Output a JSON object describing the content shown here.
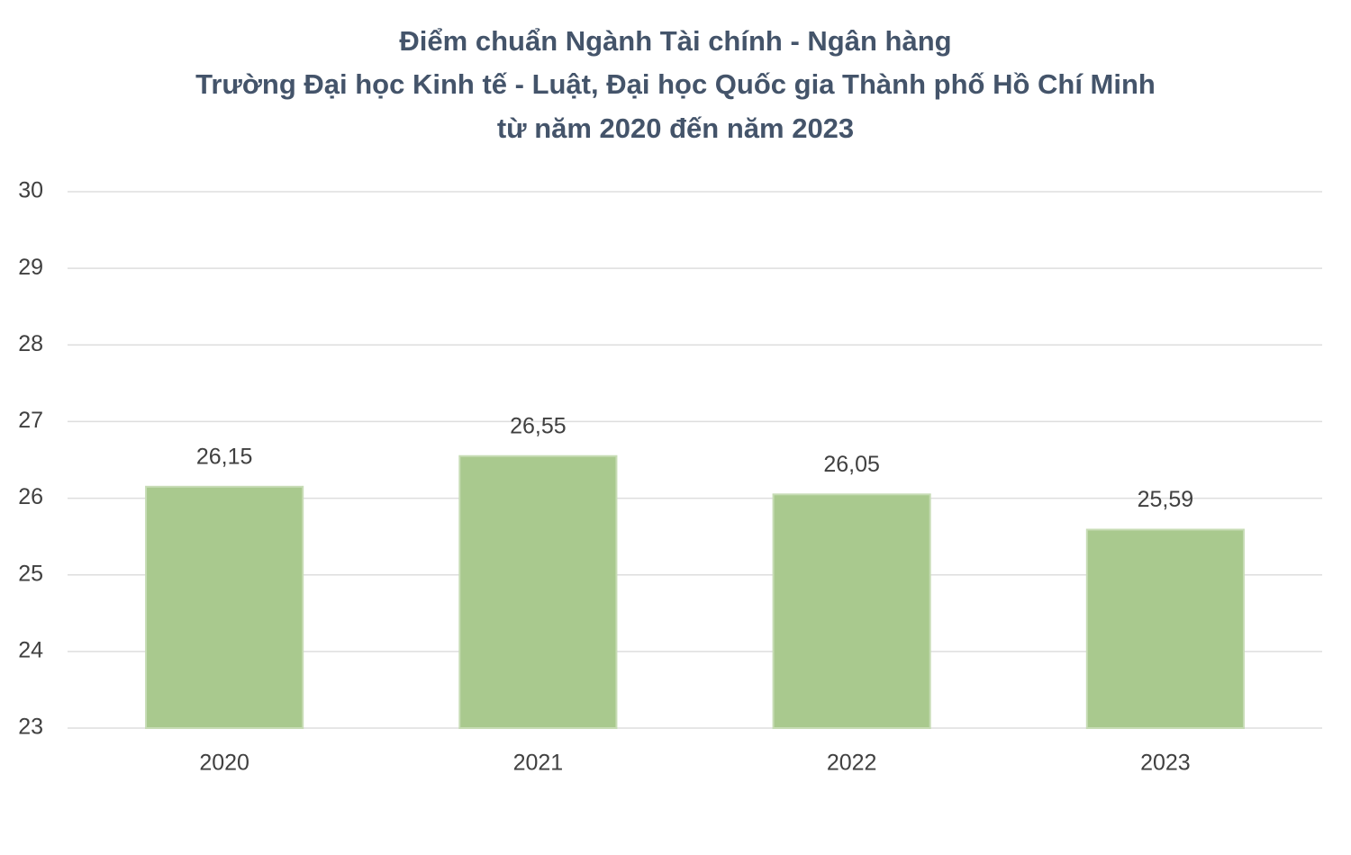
{
  "chart_data": {
    "type": "bar",
    "title": [
      "Điểm chuẩn Ngành Tài chính - Ngân hàng",
      "Trường Đại học Kinh tế - Luật, Đại học Quốc gia Thành phố Hồ Chí Minh",
      "từ năm 2020 đến năm 2023"
    ],
    "categories": [
      "2020",
      "2021",
      "2022",
      "2023"
    ],
    "values": [
      26.15,
      26.55,
      26.05,
      25.59
    ],
    "value_labels": [
      "26,15",
      "26,55",
      "26,05",
      "25,59"
    ],
    "color": "#a9c98e",
    "ylim": [
      23,
      30
    ],
    "yticks": [
      23,
      24,
      25,
      26,
      27,
      28,
      29,
      30
    ],
    "grid": true
  }
}
